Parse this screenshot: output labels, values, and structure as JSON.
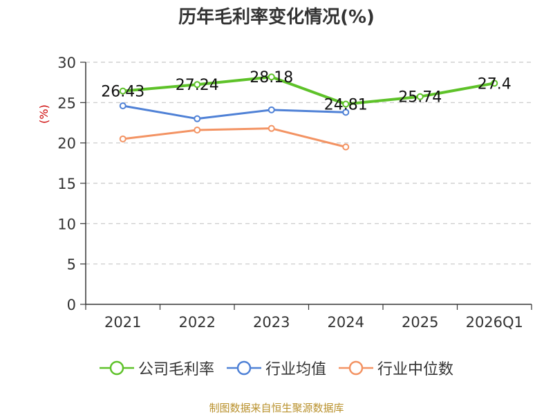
{
  "title": "历年毛利率变化情况(%)",
  "source": "制图数据来自恒生聚源数据库",
  "chart_data": {
    "type": "line",
    "title": "历年毛利率变化情况(%)",
    "ylabel": "(%)",
    "ylabel_color": "#cc0000",
    "categories": [
      "2021",
      "2022",
      "2023",
      "2024",
      "2025",
      "2026Q1"
    ],
    "ylim": [
      0,
      30
    ],
    "yticks": [
      0,
      5,
      10,
      15,
      20,
      25,
      30
    ],
    "grid": true,
    "legend_position": "bottom",
    "series": [
      {
        "name": "公司毛利率",
        "color": "#5ec229",
        "width": 4,
        "values": [
          26.43,
          27.24,
          28.18,
          24.81,
          25.74,
          27.4
        ],
        "labels": [
          "26.43",
          "27.24",
          "28.18",
          "24.81",
          "25.74",
          "27.4"
        ]
      },
      {
        "name": "行业均值",
        "color": "#4f81d6",
        "width": 3,
        "values": [
          24.6,
          23.0,
          24.1,
          23.8,
          null,
          null
        ]
      },
      {
        "name": "行业中位数",
        "color": "#f39363",
        "width": 3,
        "values": [
          20.5,
          21.6,
          21.8,
          19.5,
          null,
          null
        ]
      }
    ]
  }
}
